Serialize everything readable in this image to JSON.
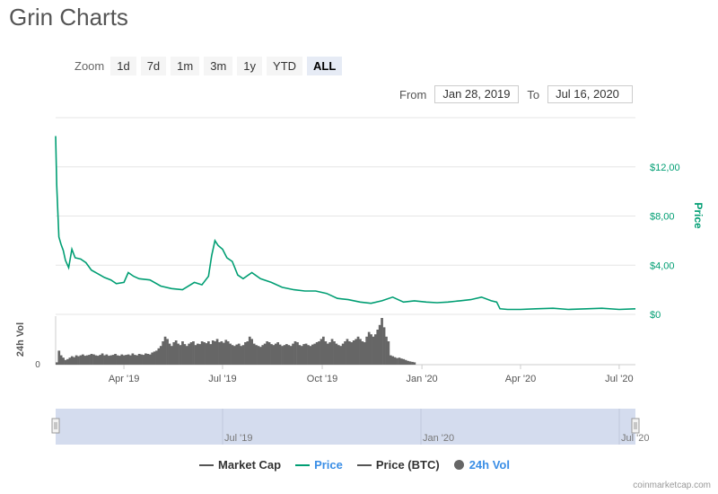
{
  "title": "Grin Charts",
  "zoom": {
    "label": "Zoom",
    "buttons": [
      "1d",
      "7d",
      "1m",
      "3m",
      "1y",
      "YTD",
      "ALL"
    ],
    "active": "ALL"
  },
  "range": {
    "from_label": "From",
    "from_value": "Jan 28, 2019",
    "to_label": "To",
    "to_value": "Jul 16, 2020"
  },
  "colors": {
    "price": "#009e73",
    "market_cap": "#555555",
    "price_btc": "#555555",
    "volume": "#666666",
    "navigator": "#ccd6eb",
    "link_blue": "#3a8ee6"
  },
  "legend": [
    {
      "name": "Market Cap",
      "type": "line",
      "color": "#555555"
    },
    {
      "name": "Price",
      "type": "line",
      "color": "#009e73"
    },
    {
      "name": "Price (BTC)",
      "type": "line",
      "color": "#555555"
    },
    {
      "name": "24h Vol",
      "type": "dot",
      "color": "#666666"
    }
  ],
  "footer": "coinmarketcap.com",
  "chart_data": {
    "type": "line",
    "x_range": [
      "2019-01-28",
      "2020-07-16"
    ],
    "x_tick_labels": [
      "Apr '19",
      "Jul '19",
      "Oct '19",
      "Jan '20",
      "Apr '20",
      "Jul '20"
    ],
    "y_axis": {
      "label": "Price",
      "ticks": [
        "$0",
        "$4,00",
        "$8,00",
        "$12,00"
      ],
      "ylim": [
        0,
        16
      ]
    },
    "volume_axis": {
      "label": "24h Vol",
      "ticks": [
        "0"
      ]
    },
    "navigator_labels": [
      "Jul '19",
      "Jan '20",
      "Jul '20"
    ],
    "series": [
      {
        "name": "Price",
        "x": [
          "2019-01-28",
          "2019-01-29",
          "2019-01-31",
          "2019-02-02",
          "2019-02-04",
          "2019-02-06",
          "2019-02-09",
          "2019-02-12",
          "2019-02-15",
          "2019-02-20",
          "2019-02-25",
          "2019-03-02",
          "2019-03-08",
          "2019-03-14",
          "2019-03-20",
          "2019-03-25",
          "2019-04-01",
          "2019-04-05",
          "2019-04-10",
          "2019-04-15",
          "2019-04-25",
          "2019-05-05",
          "2019-05-15",
          "2019-05-25",
          "2019-06-05",
          "2019-06-12",
          "2019-06-18",
          "2019-06-21",
          "2019-06-24",
          "2019-06-27",
          "2019-07-01",
          "2019-07-05",
          "2019-07-10",
          "2019-07-15",
          "2019-07-20",
          "2019-07-28",
          "2019-08-05",
          "2019-08-15",
          "2019-08-25",
          "2019-09-05",
          "2019-09-15",
          "2019-09-25",
          "2019-10-05",
          "2019-10-15",
          "2019-10-25",
          "2019-11-05",
          "2019-11-15",
          "2019-11-25",
          "2019-12-05",
          "2019-12-15",
          "2019-12-25",
          "2020-01-05",
          "2020-01-15",
          "2020-01-25",
          "2020-02-05",
          "2020-02-15",
          "2020-02-25",
          "2020-03-05",
          "2020-03-10",
          "2020-03-13",
          "2020-03-20",
          "2020-04-01",
          "2020-04-15",
          "2020-05-01",
          "2020-05-15",
          "2020-06-01",
          "2020-06-15",
          "2020-07-01",
          "2020-07-16"
        ],
        "values": [
          14.5,
          10.5,
          6.3,
          5.7,
          5.2,
          4.4,
          3.8,
          5.3,
          4.6,
          4.5,
          4.2,
          3.6,
          3.3,
          3.0,
          2.8,
          2.5,
          2.6,
          3.4,
          3.1,
          2.9,
          2.8,
          2.3,
          2.1,
          2.0,
          2.6,
          2.4,
          3.1,
          4.8,
          6.0,
          5.6,
          5.3,
          4.6,
          4.3,
          3.2,
          2.9,
          3.4,
          2.9,
          2.6,
          2.2,
          2.0,
          1.9,
          1.9,
          1.7,
          1.3,
          1.2,
          1.0,
          0.9,
          1.1,
          1.4,
          1.0,
          1.1,
          1.0,
          0.95,
          1.0,
          1.1,
          1.2,
          1.4,
          1.1,
          1.0,
          0.45,
          0.4,
          0.4,
          0.45,
          0.5,
          0.4,
          0.45,
          0.5,
          0.4,
          0.45
        ]
      },
      {
        "name": "24h Vol",
        "x_start": "2019-01-28",
        "step_days": 2,
        "values": [
          0.05,
          0.3,
          0.2,
          0.15,
          0.1,
          0.12,
          0.15,
          0.18,
          0.16,
          0.2,
          0.18,
          0.2,
          0.22,
          0.19,
          0.2,
          0.21,
          0.23,
          0.22,
          0.2,
          0.19,
          0.21,
          0.24,
          0.2,
          0.22,
          0.19,
          0.2,
          0.21,
          0.23,
          0.2,
          0.19,
          0.22,
          0.2,
          0.21,
          0.22,
          0.2,
          0.24,
          0.21,
          0.2,
          0.23,
          0.22,
          0.21,
          0.24,
          0.23,
          0.22,
          0.26,
          0.28,
          0.3,
          0.35,
          0.4,
          0.5,
          0.6,
          0.55,
          0.45,
          0.4,
          0.48,
          0.52,
          0.45,
          0.42,
          0.5,
          0.44,
          0.4,
          0.45,
          0.48,
          0.5,
          0.42,
          0.45,
          0.44,
          0.5,
          0.48,
          0.46,
          0.5,
          0.44,
          0.52,
          0.5,
          0.55,
          0.48,
          0.5,
          0.47,
          0.53,
          0.5,
          0.45,
          0.42,
          0.4,
          0.43,
          0.45,
          0.4,
          0.42,
          0.48,
          0.5,
          0.6,
          0.55,
          0.45,
          0.42,
          0.4,
          0.38,
          0.42,
          0.45,
          0.5,
          0.48,
          0.44,
          0.42,
          0.45,
          0.48,
          0.43,
          0.4,
          0.42,
          0.44,
          0.42,
          0.4,
          0.45,
          0.5,
          0.48,
          0.42,
          0.4,
          0.44,
          0.45,
          0.42,
          0.4,
          0.43,
          0.45,
          0.48,
          0.5,
          0.55,
          0.6,
          0.5,
          0.45,
          0.48,
          0.55,
          0.5,
          0.45,
          0.42,
          0.4,
          0.45,
          0.5,
          0.55,
          0.5,
          0.48,
          0.52,
          0.55,
          0.6,
          0.55,
          0.5,
          0.48,
          0.6,
          0.7,
          0.65,
          0.6,
          0.65,
          0.75,
          0.85,
          1.0,
          0.8,
          0.6,
          0.5,
          0.2,
          0.18,
          0.16,
          0.14,
          0.15,
          0.13,
          0.12,
          0.1,
          0.08,
          0.07,
          0.06,
          0.05
        ]
      }
    ],
    "grid": true
  }
}
